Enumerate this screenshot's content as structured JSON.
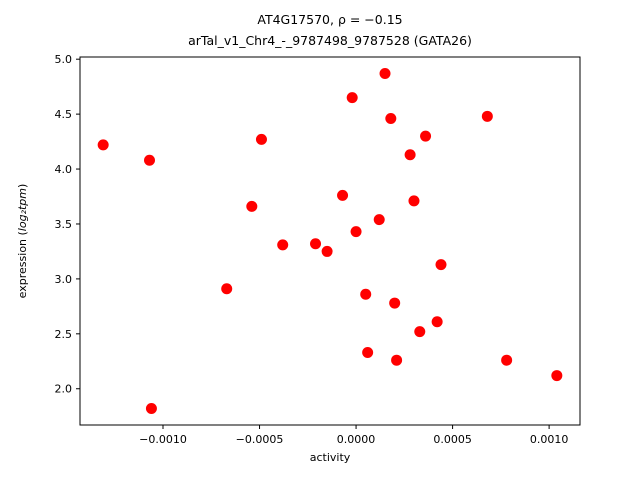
{
  "chart_data": {
    "type": "scatter",
    "title_line1": "AT4G17570, ρ = −0.15",
    "title_line2": "arTal_v1_Chr4_-_9787498_9787528 (GATA26)",
    "xlabel": "activity",
    "ylabel_prefix": "expression (",
    "ylabel_math": "log₂tpm",
    "ylabel_suffix": ")",
    "marker_color": "#ff0000",
    "axis_color": "#000000",
    "background_color": "#ffffff",
    "legend": "none",
    "grid": false,
    "xlim": [
      -0.00143,
      0.00116
    ],
    "ylim": [
      1.67,
      5.02
    ],
    "xticks": [
      -0.001,
      -0.0005,
      0.0,
      0.0005,
      0.001
    ],
    "xtick_labels": [
      "−0.0010",
      "−0.0005",
      "0.0000",
      "0.0005",
      "0.0010"
    ],
    "yticks": [
      2.0,
      2.5,
      3.0,
      3.5,
      4.0,
      4.5,
      5.0
    ],
    "ytick_labels": [
      "2.0",
      "2.5",
      "3.0",
      "3.5",
      "4.0",
      "4.5",
      "5.0"
    ],
    "points": [
      [
        -0.00131,
        4.22
      ],
      [
        -0.00107,
        4.08
      ],
      [
        -0.00106,
        1.82
      ],
      [
        -0.00067,
        2.91
      ],
      [
        -0.00054,
        3.66
      ],
      [
        -0.00049,
        4.27
      ],
      [
        -0.00038,
        3.31
      ],
      [
        -0.00021,
        3.32
      ],
      [
        -0.00015,
        3.25
      ],
      [
        -7e-05,
        3.76
      ],
      [
        -2e-05,
        4.65
      ],
      [
        0.0,
        3.43
      ],
      [
        5e-05,
        2.86
      ],
      [
        6e-05,
        2.33
      ],
      [
        0.00012,
        3.54
      ],
      [
        0.00015,
        4.87
      ],
      [
        0.00018,
        4.46
      ],
      [
        0.0002,
        2.78
      ],
      [
        0.00021,
        2.26
      ],
      [
        0.00028,
        4.13
      ],
      [
        0.0003,
        3.71
      ],
      [
        0.00033,
        2.52
      ],
      [
        0.00036,
        4.3
      ],
      [
        0.00042,
        2.61
      ],
      [
        0.00044,
        3.13
      ],
      [
        0.00068,
        4.48
      ],
      [
        0.00078,
        2.26
      ],
      [
        0.00104,
        2.12
      ]
    ]
  }
}
